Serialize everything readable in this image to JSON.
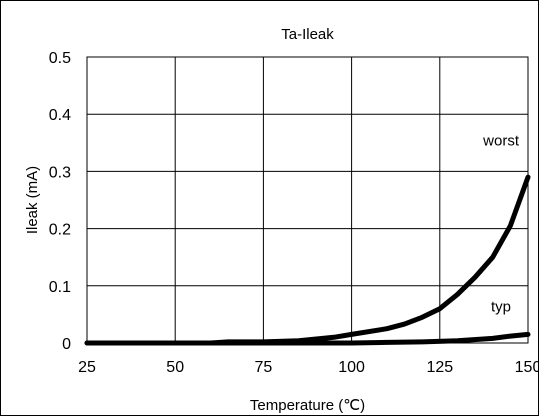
{
  "chart_data": {
    "type": "line",
    "title": "Ta-Ileak",
    "xlabel": "Temperature (℃)",
    "ylabel": "Ileak (mA)",
    "xlim": [
      25,
      150
    ],
    "ylim": [
      0,
      0.5
    ],
    "x_ticks": [
      "25",
      "50",
      "75",
      "100",
      "125",
      "150"
    ],
    "y_ticks": [
      "0",
      "0.1",
      "0.2",
      "0.3",
      "0.4",
      "0.5"
    ],
    "grid": true,
    "legend": "none",
    "line_color": "#000000",
    "series": [
      {
        "name": "worst",
        "x": [
          25,
          50,
          60,
          65,
          75,
          85,
          90,
          95,
          100,
          110,
          115,
          120,
          125,
          130,
          135,
          140,
          145,
          150
        ],
        "y": [
          0,
          0,
          0,
          0.002,
          0.002,
          0.004,
          0.007,
          0.01,
          0.015,
          0.025,
          0.033,
          0.045,
          0.06,
          0.085,
          0.115,
          0.15,
          0.205,
          0.29
        ]
      },
      {
        "name": "typ",
        "x": [
          25,
          75,
          100,
          110,
          120,
          130,
          140,
          145,
          150
        ],
        "y": [
          0,
          0,
          0,
          0.001,
          0.002,
          0.004,
          0.008,
          0.012,
          0.015
        ]
      }
    ]
  }
}
